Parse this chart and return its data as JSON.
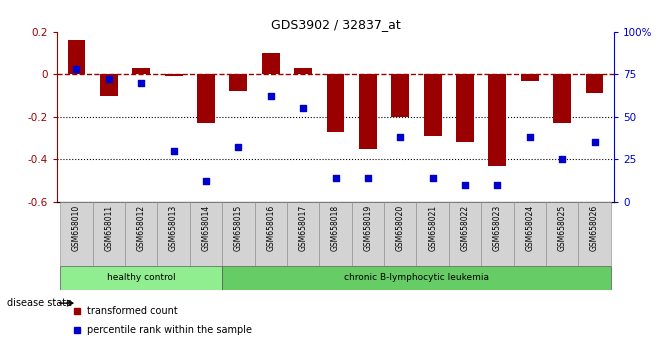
{
  "title": "GDS3902 / 32837_at",
  "samples": [
    "GSM658010",
    "GSM658011",
    "GSM658012",
    "GSM658013",
    "GSM658014",
    "GSM658015",
    "GSM658016",
    "GSM658017",
    "GSM658018",
    "GSM658019",
    "GSM658020",
    "GSM658021",
    "GSM658022",
    "GSM658023",
    "GSM658024",
    "GSM658025",
    "GSM658026"
  ],
  "bar_values": [
    0.16,
    -0.1,
    0.03,
    -0.01,
    -0.23,
    -0.08,
    0.1,
    0.03,
    -0.27,
    -0.35,
    -0.2,
    -0.29,
    -0.32,
    -0.43,
    -0.03,
    -0.23,
    -0.09
  ],
  "percentile_values": [
    78,
    72,
    70,
    30,
    12,
    32,
    62,
    55,
    14,
    14,
    38,
    14,
    10,
    10,
    38,
    25,
    35
  ],
  "bar_color": "#9B0000",
  "dot_color": "#0000CC",
  "ylim_left": [
    -0.6,
    0.2
  ],
  "ylim_right": [
    0,
    100
  ],
  "yticks_left": [
    -0.6,
    -0.4,
    -0.2,
    0.0,
    0.2
  ],
  "yticks_right": [
    0,
    25,
    50,
    75,
    100
  ],
  "yticklabels_right": [
    "0",
    "25",
    "50",
    "75",
    "100%"
  ],
  "dotted_lines": [
    -0.2,
    -0.4
  ],
  "n_healthy": 5,
  "n_leukemia": 12,
  "group1_label": "healthy control",
  "group2_label": "chronic B-lymphocytic leukemia",
  "group1_color": "#90EE90",
  "group2_color": "#66CC66",
  "cell_color": "#D3D3D3",
  "disease_state_label": "disease state",
  "legend_items": [
    {
      "label": "transformed count",
      "color": "#9B0000"
    },
    {
      "label": "percentile rank within the sample",
      "color": "#0000CC"
    }
  ]
}
